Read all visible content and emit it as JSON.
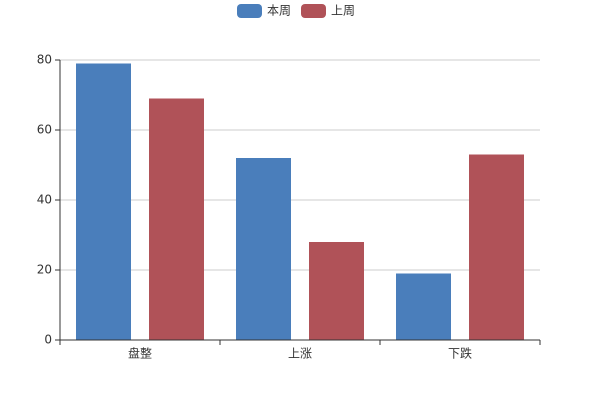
{
  "chart_data": {
    "type": "bar",
    "categories": [
      "盘整",
      "上涨",
      "下跌"
    ],
    "series": [
      {
        "name": "本周",
        "color": "#4a7ebb",
        "values": [
          79,
          52,
          19
        ]
      },
      {
        "name": "上周",
        "color": "#b05258",
        "values": [
          69,
          28,
          53
        ]
      }
    ],
    "ylim": [
      0,
      80
    ],
    "yticks": [
      0,
      20,
      40,
      60,
      80
    ],
    "grid": true,
    "legend": "top"
  }
}
